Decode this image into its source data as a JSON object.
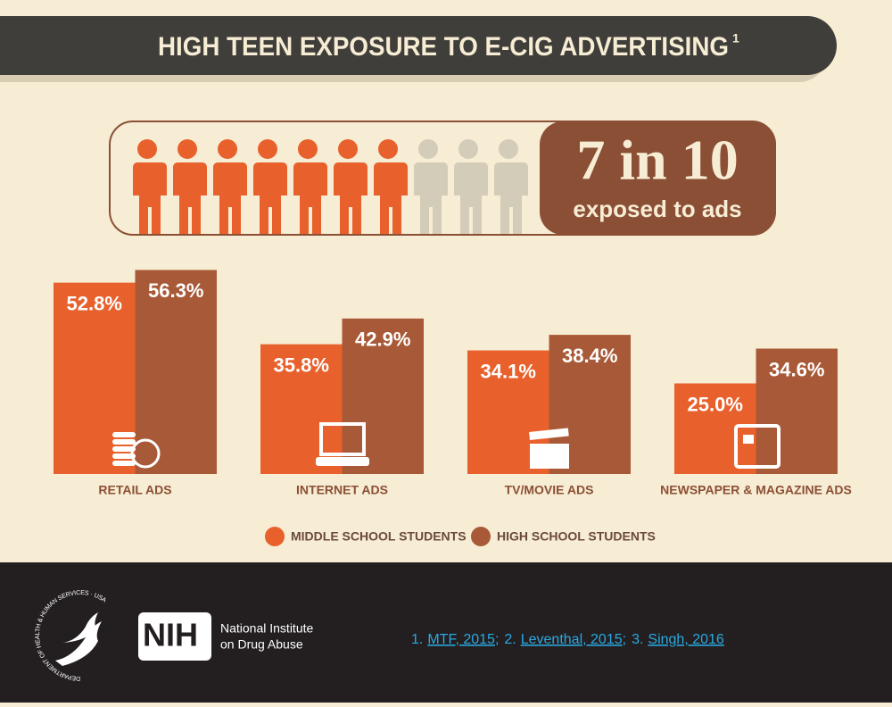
{
  "chart_data": {
    "type": "bar",
    "title": "HIGH TEEN EXPOSURE TO E-CIG ADVERTISING",
    "title_note": "1",
    "headline": "7 in 10",
    "headline_sub": "exposed to ads",
    "categories": [
      "RETAIL ADS",
      "INTERNET ADS",
      "TV/MOVIE ADS",
      "NEWSPAPER & MAGAZINE ADS"
    ],
    "series": [
      {
        "name": "MIDDLE SCHOOL STUDENTS",
        "color": "#e8612c",
        "values": [
          52.8,
          35.8,
          34.1,
          25.0
        ],
        "value_labels": [
          "52.8%",
          "35.8%",
          "34.1%",
          "25.0%"
        ]
      },
      {
        "name": "HIGH SCHOOL STUDENTS",
        "color": "#a85a38",
        "values": [
          56.3,
          42.9,
          38.4,
          34.6
        ],
        "value_labels": [
          "56.3%",
          "42.9%",
          "38.4%",
          "34.6%"
        ]
      }
    ]
  },
  "footer": {
    "seal_text": "DEPARTMENT OF HEALTH & HUMAN SERVICES · USA",
    "logo": "NIH",
    "institute": [
      "National Institute",
      "on Drug Abuse"
    ],
    "references": [
      {
        "number": "1.",
        "link": "MTF, 2015",
        "separator": ";"
      },
      {
        "number": "2.",
        "link": "Leventhal, 2015",
        "separator": ";"
      },
      {
        "number": "3.",
        "link": "Singh, 2016"
      }
    ]
  }
}
